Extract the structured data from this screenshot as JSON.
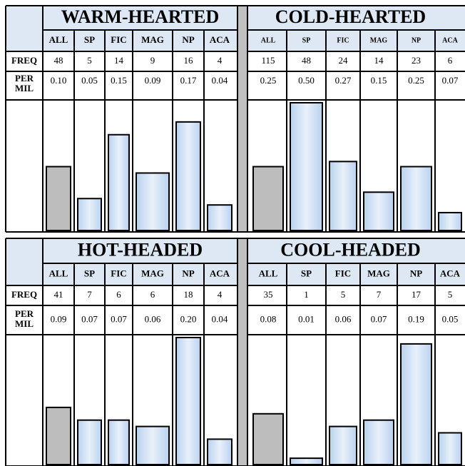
{
  "row_labels": {
    "freq": "FREQ",
    "per_mil": "PER\nMIL"
  },
  "colors": {
    "header_fill": "#dde8f4",
    "divider": "#c0c0c0",
    "all_bar": "#bdbdbd",
    "bar_light": "#e8f0fa",
    "bar_mid": "#b9d2ee",
    "border": "#000000"
  },
  "chart_data": [
    {
      "type": "bar",
      "title": "WARM-HEARTED",
      "categories": [
        "ALL",
        "SP",
        "FIC",
        "MAG",
        "NP",
        "ACA"
      ],
      "freq": [
        48,
        5,
        14,
        9,
        16,
        4
      ],
      "per_mil": [
        "0.10",
        "0.05",
        "0.15",
        "0.09",
        "0.17",
        "0.04"
      ],
      "values": [
        0.1,
        0.05,
        0.15,
        0.09,
        0.17,
        0.04
      ],
      "ylim": [
        0,
        0.2
      ]
    },
    {
      "type": "bar",
      "title": "COLD-HEARTED",
      "categories": [
        "ALL",
        "SP",
        "FIC",
        "MAG",
        "NP",
        "ACA"
      ],
      "freq": [
        115,
        48,
        24,
        14,
        23,
        6
      ],
      "per_mil": [
        "0.25",
        "0.50",
        "0.27",
        "0.15",
        "0.25",
        "0.07"
      ],
      "values": [
        0.25,
        0.5,
        0.27,
        0.15,
        0.25,
        0.07
      ],
      "ylim": [
        0,
        0.5
      ]
    },
    {
      "type": "bar",
      "title": "HOT-HEADED",
      "categories": [
        "ALL",
        "SP",
        "FIC",
        "MAG",
        "NP",
        "ACA"
      ],
      "freq": [
        41,
        7,
        6,
        6,
        18,
        4
      ],
      "per_mil": [
        "0.09",
        "0.07",
        "0.07",
        "0.06",
        "0.20",
        "0.04"
      ],
      "values": [
        0.09,
        0.07,
        0.07,
        0.06,
        0.2,
        0.04
      ],
      "ylim": [
        0,
        0.2
      ]
    },
    {
      "type": "bar",
      "title": "COOL-HEADED",
      "categories": [
        "ALL",
        "SP",
        "FIC",
        "MAG",
        "NP",
        "ACA"
      ],
      "freq": [
        35,
        1,
        5,
        7,
        17,
        5
      ],
      "per_mil": [
        "0.08",
        "0.01",
        "0.06",
        "0.07",
        "0.19",
        "0.05"
      ],
      "values": [
        0.08,
        0.01,
        0.06,
        0.07,
        0.19,
        0.05
      ],
      "ylim": [
        0,
        0.2
      ]
    }
  ]
}
